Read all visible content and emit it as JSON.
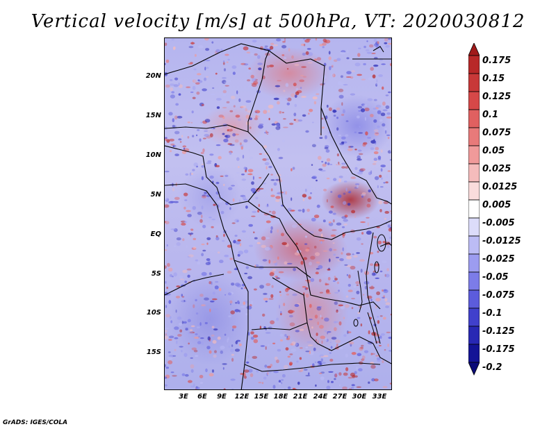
{
  "title": "Vertical velocity [m/s] at 500hPa, VT: 2020030812",
  "credit": "GrADS: IGES/COLA",
  "map": {
    "variable": "vertical velocity",
    "units": "m/s",
    "level": "500hPa",
    "valid_time": "2020030812",
    "lat_labels": [
      "20N",
      "15N",
      "10N",
      "5N",
      "EQ",
      "5S",
      "10S",
      "15S"
    ],
    "lon_labels": [
      "3E",
      "6E",
      "9E",
      "12E",
      "15E",
      "18E",
      "21E",
      "24E",
      "27E",
      "30E",
      "33E"
    ]
  },
  "colorbar": {
    "levels": [
      "0.175",
      "0.15",
      "0.125",
      "0.1",
      "0.075",
      "0.05",
      "0.025",
      "0.0125",
      "0.005",
      "-0.005",
      "-0.0125",
      "-0.025",
      "-0.05",
      "-0.075",
      "-0.1",
      "-0.125",
      "-0.175",
      "-0.2"
    ],
    "colors": [
      "#a01a1a",
      "#b82828",
      "#c83838",
      "#d64848",
      "#e06060",
      "#e87a7a",
      "#f09a9a",
      "#f5bcbc",
      "#fadcdc",
      "#ffffff",
      "#dcdcfa",
      "#bcbcf5",
      "#9c9cf0",
      "#7c7ce8",
      "#5c5cdc",
      "#4040cc",
      "#2828b4",
      "#141496",
      "#0a0a78"
    ]
  }
}
